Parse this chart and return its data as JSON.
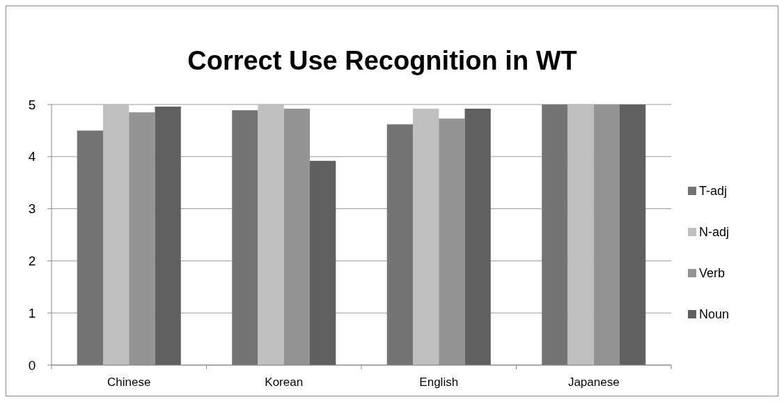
{
  "chart_data": {
    "type": "bar",
    "title": "Correct Use Recognition in WT",
    "categories": [
      "Chinese",
      "Korean",
      "English",
      "Japanese"
    ],
    "series": [
      {
        "name": "T-adj",
        "color": "#747474",
        "values": [
          4.5,
          4.89,
          4.62,
          5
        ]
      },
      {
        "name": "N-adj",
        "color": "#c0c0c0",
        "values": [
          5,
          5,
          4.92,
          5
        ]
      },
      {
        "name": "Verb",
        "color": "#949494",
        "values": [
          4.85,
          4.92,
          4.73,
          5
        ]
      },
      {
        "name": "Noun",
        "color": "#606060",
        "values": [
          4.96,
          3.92,
          4.92,
          5
        ]
      }
    ],
    "ylim": [
      0,
      5
    ],
    "yticks": [
      0,
      1,
      2,
      3,
      4,
      5
    ],
    "grid": "y",
    "legend": "right"
  }
}
